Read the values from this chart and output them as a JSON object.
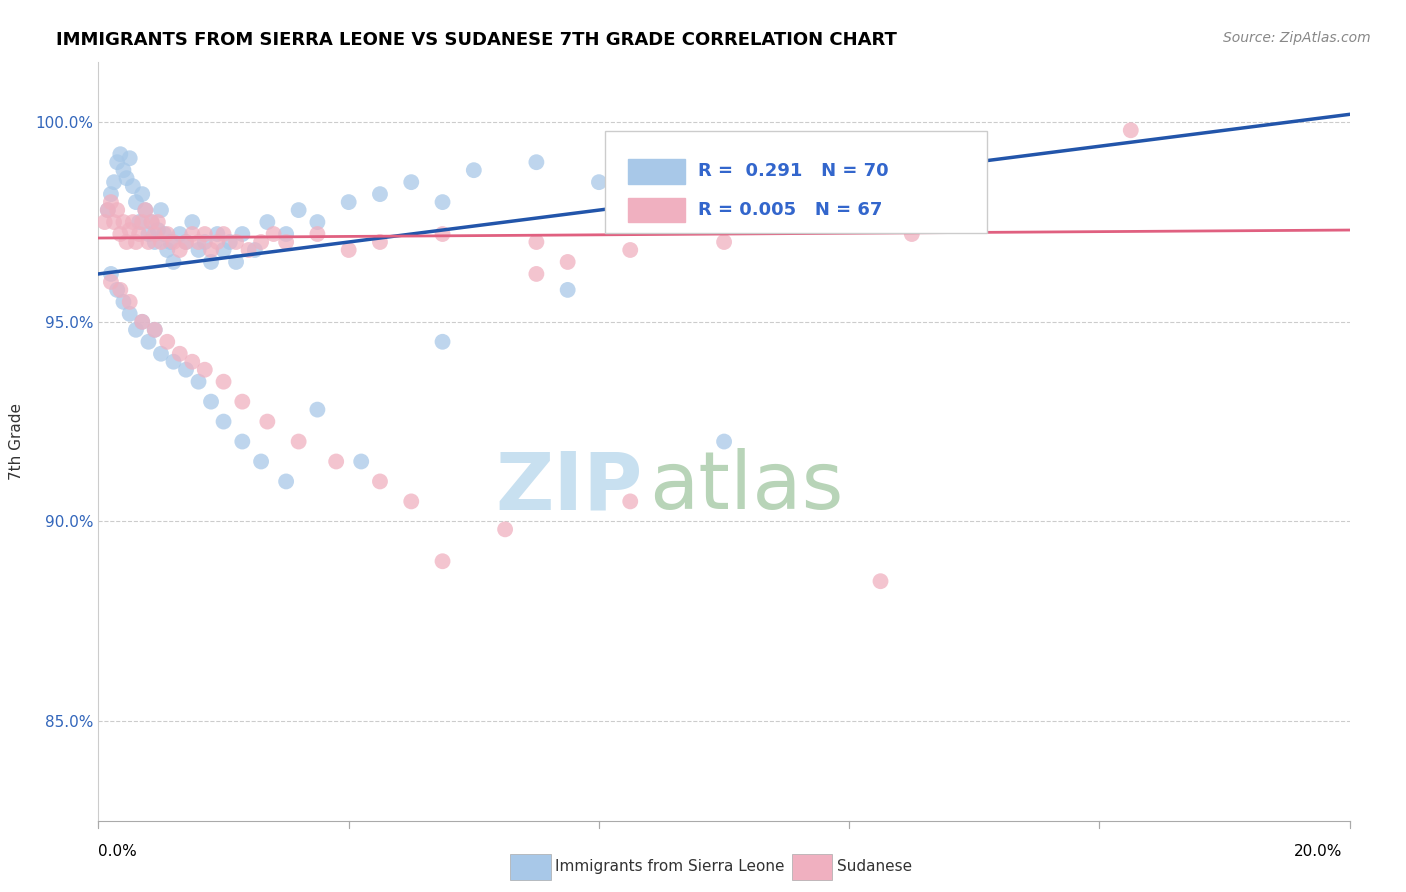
{
  "title": "IMMIGRANTS FROM SIERRA LEONE VS SUDANESE 7TH GRADE CORRELATION CHART",
  "source": "Source: ZipAtlas.com",
  "ylabel": "7th Grade",
  "xmin": 0.0,
  "xmax": 20.0,
  "ymin": 82.5,
  "ymax": 101.5,
  "yticks": [
    85.0,
    90.0,
    95.0,
    100.0
  ],
  "ytick_labels": [
    "85.0%",
    "90.0%",
    "95.0%",
    "100.0%"
  ],
  "legend_blue_label": "Immigrants from Sierra Leone",
  "legend_pink_label": "Sudanese",
  "blue_color": "#a8c8e8",
  "pink_color": "#f0b0c0",
  "blue_line_color": "#2255aa",
  "pink_line_color": "#e06080",
  "blue_scatter_x": [
    0.15,
    0.2,
    0.25,
    0.3,
    0.35,
    0.4,
    0.45,
    0.5,
    0.55,
    0.6,
    0.65,
    0.7,
    0.75,
    0.8,
    0.85,
    0.9,
    0.95,
    1.0,
    1.05,
    1.1,
    1.15,
    1.2,
    1.3,
    1.4,
    1.5,
    1.6,
    1.7,
    1.8,
    1.9,
    2.0,
    2.1,
    2.2,
    2.3,
    2.5,
    2.7,
    3.0,
    3.2,
    3.5,
    4.0,
    4.5,
    5.0,
    5.5,
    6.0,
    7.0,
    8.0,
    9.5,
    12.0,
    0.2,
    0.3,
    0.4,
    0.5,
    0.6,
    0.7,
    0.8,
    0.9,
    1.0,
    1.2,
    1.4,
    1.6,
    1.8,
    2.0,
    2.3,
    2.6,
    3.0,
    3.5,
    4.2,
    5.5,
    7.5,
    10.0,
    12.5
  ],
  "blue_scatter_y": [
    97.8,
    98.2,
    98.5,
    99.0,
    99.2,
    98.8,
    98.6,
    99.1,
    98.4,
    98.0,
    97.5,
    98.2,
    97.8,
    97.2,
    97.5,
    97.0,
    97.3,
    97.8,
    97.2,
    96.8,
    97.0,
    96.5,
    97.2,
    97.0,
    97.5,
    96.8,
    97.0,
    96.5,
    97.2,
    96.8,
    97.0,
    96.5,
    97.2,
    96.8,
    97.5,
    97.2,
    97.8,
    97.5,
    98.0,
    98.2,
    98.5,
    98.0,
    98.8,
    99.0,
    98.5,
    99.0,
    99.2,
    96.2,
    95.8,
    95.5,
    95.2,
    94.8,
    95.0,
    94.5,
    94.8,
    94.2,
    94.0,
    93.8,
    93.5,
    93.0,
    92.5,
    92.0,
    91.5,
    91.0,
    92.8,
    91.5,
    94.5,
    95.8,
    92.0,
    97.5
  ],
  "pink_scatter_x": [
    0.1,
    0.15,
    0.2,
    0.25,
    0.3,
    0.35,
    0.4,
    0.45,
    0.5,
    0.55,
    0.6,
    0.65,
    0.7,
    0.75,
    0.8,
    0.85,
    0.9,
    0.95,
    1.0,
    1.1,
    1.2,
    1.3,
    1.4,
    1.5,
    1.6,
    1.7,
    1.8,
    1.9,
    2.0,
    2.2,
    2.4,
    2.6,
    2.8,
    3.0,
    3.5,
    4.0,
    4.5,
    5.5,
    7.0,
    8.5,
    10.5,
    13.0,
    16.5,
    0.2,
    0.35,
    0.5,
    0.7,
    0.9,
    1.1,
    1.3,
    1.5,
    1.7,
    2.0,
    2.3,
    2.7,
    3.2,
    3.8,
    4.5,
    5.0,
    6.5,
    7.5,
    9.0,
    5.5,
    7.0,
    8.5,
    10.0,
    12.5
  ],
  "pink_scatter_y": [
    97.5,
    97.8,
    98.0,
    97.5,
    97.8,
    97.2,
    97.5,
    97.0,
    97.3,
    97.5,
    97.0,
    97.2,
    97.5,
    97.8,
    97.0,
    97.5,
    97.2,
    97.5,
    97.0,
    97.2,
    97.0,
    96.8,
    97.0,
    97.2,
    97.0,
    97.2,
    96.8,
    97.0,
    97.2,
    97.0,
    96.8,
    97.0,
    97.2,
    97.0,
    97.2,
    96.8,
    97.0,
    97.2,
    97.0,
    96.8,
    97.5,
    97.2,
    99.8,
    96.0,
    95.8,
    95.5,
    95.0,
    94.8,
    94.5,
    94.2,
    94.0,
    93.8,
    93.5,
    93.0,
    92.5,
    92.0,
    91.5,
    91.0,
    90.5,
    89.8,
    96.5,
    97.5,
    89.0,
    96.2,
    90.5,
    97.0,
    88.5
  ],
  "blue_line_x0": 0.0,
  "blue_line_y0": 96.2,
  "blue_line_x1": 20.0,
  "blue_line_y1": 100.2,
  "pink_line_x0": 0.0,
  "pink_line_y0": 97.1,
  "pink_line_x1": 20.0,
  "pink_line_y1": 97.3,
  "watermark_zip_color": "#c8e0f0",
  "watermark_atlas_color": "#b8d4b8"
}
